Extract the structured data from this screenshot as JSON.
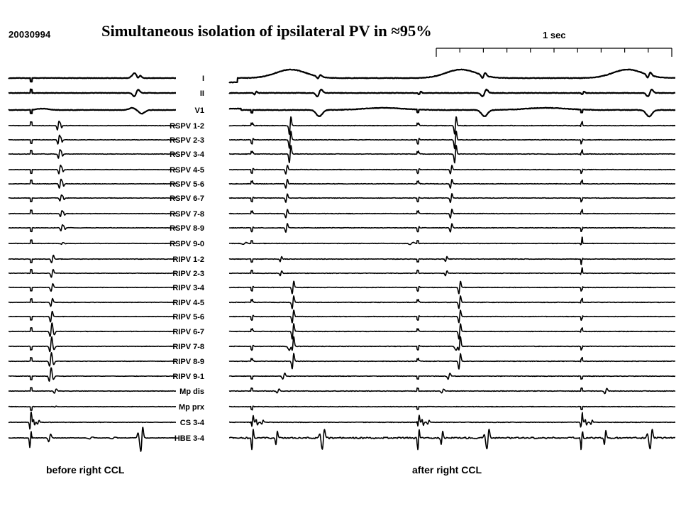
{
  "title": "Simultaneous isolation of ipsilateral PV in ≈95%",
  "record_id": "20030994",
  "scale_label": "1 sec",
  "panel_labels": {
    "before": "before right CCL",
    "after": "after right CCL"
  },
  "chart_data": {
    "type": "line",
    "title": "Simultaneous isolation of ipsilateral PV in ≈95%",
    "scale_bar": "1 sec",
    "panels": [
      "before right CCL",
      "after right CCL"
    ],
    "channels": [
      "I",
      "II",
      "V1",
      "RSPV 1-2",
      "RSPV 2-3",
      "RSPV 3-4",
      "RSPV 4-5",
      "RSPV 5-6",
      "RSPV 6-7",
      "RSPV 7-8",
      "RSPV 8-9",
      "RSPV 9-0",
      "RIPV 1-2",
      "RIPV 2-3",
      "RIPV 3-4",
      "RIPV 4-5",
      "RIPV 5-6",
      "RIPV 6-7",
      "RIPV 7-8",
      "RIPV 8-9",
      "RIPV 9-1",
      "Mp dis",
      "Mp prx",
      "CS 3-4",
      "HBE 3-4"
    ],
    "colors": {
      "trace": "#000000",
      "background": "#ffffff"
    }
  }
}
